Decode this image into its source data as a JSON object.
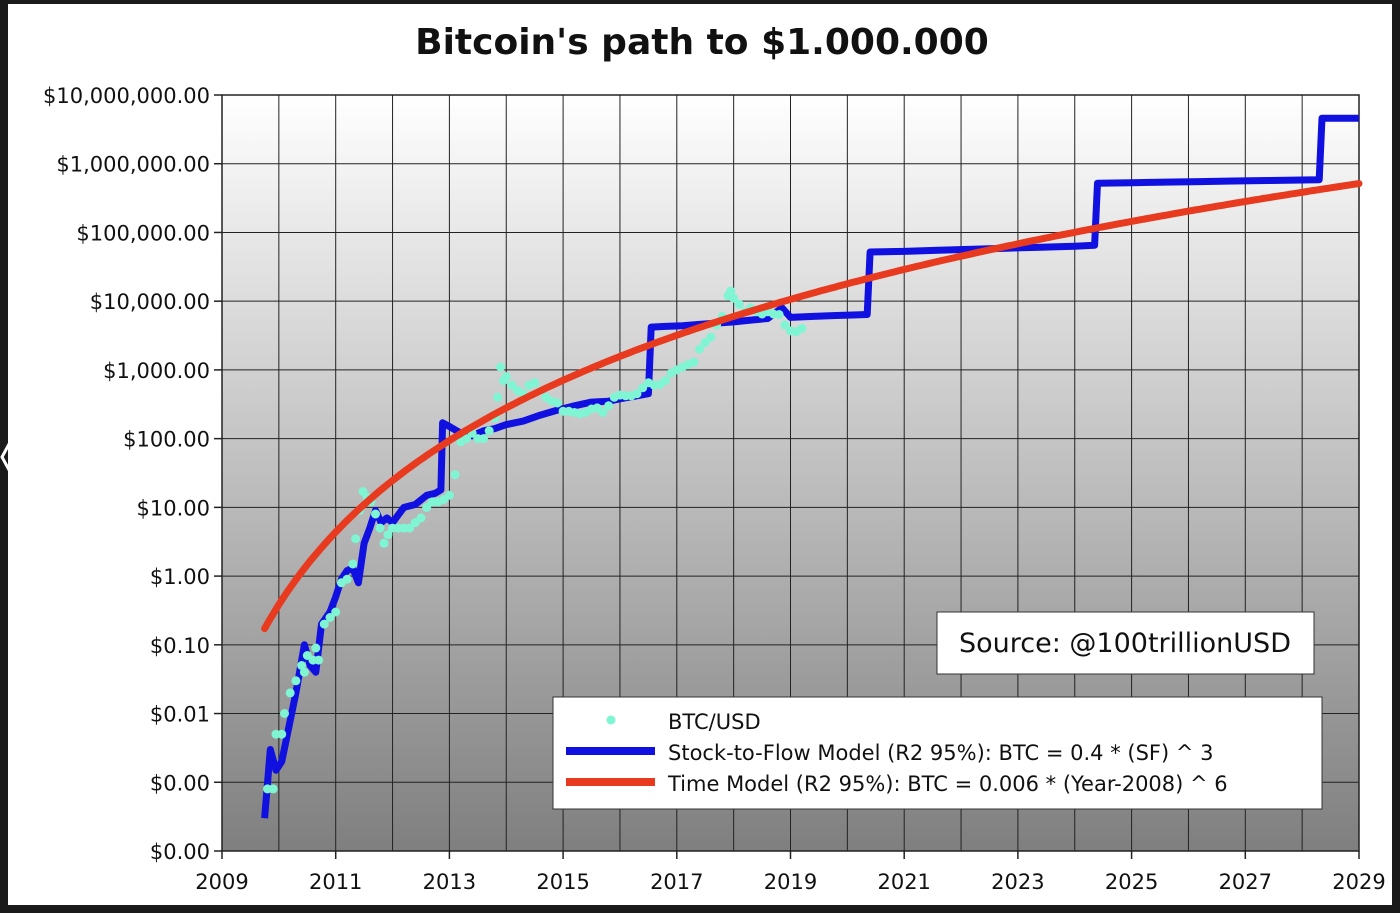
{
  "chart_data": {
    "type": "line",
    "title": "Bitcoin's path to $1.000.000",
    "xlabel": "",
    "ylabel": "",
    "y_scale": "log",
    "xlim": [
      2009,
      2029
    ],
    "ylim": [
      0.0001,
      10000000
    ],
    "grid": true,
    "y_tick_values": [
      0.0001,
      0.001,
      0.01,
      0.1,
      1,
      10,
      100,
      1000,
      10000,
      100000,
      1000000,
      10000000
    ],
    "y_tick_labels": [
      "$0.00",
      "$0.00",
      "$0.01",
      "$0.10",
      "$1.00",
      "$10.00",
      "$100.00",
      "$1,000.00",
      "$10,000.00",
      "$100,000.00",
      "$1,000,000.00",
      "$10,000,000.00"
    ],
    "x_tick_values": [
      2009,
      2011,
      2013,
      2015,
      2017,
      2019,
      2021,
      2023,
      2025,
      2027,
      2029
    ],
    "x_tick_labels": [
      "2009",
      "2011",
      "2013",
      "2015",
      "2017",
      "2019",
      "2021",
      "2023",
      "2025",
      "2027",
      "2029"
    ],
    "legend_position": "bottom-right",
    "annotation": "Source: @100trillionUSD",
    "series": [
      {
        "name": "BTC/USD",
        "kind": "scatter",
        "color": "#7ff5d3",
        "points": [
          [
            2009.8,
            0.0008
          ],
          [
            2009.9,
            0.0008
          ],
          [
            2009.95,
            0.005
          ],
          [
            2010.05,
            0.005
          ],
          [
            2010.1,
            0.01
          ],
          [
            2010.2,
            0.02
          ],
          [
            2010.3,
            0.03
          ],
          [
            2010.4,
            0.05
          ],
          [
            2010.45,
            0.04
          ],
          [
            2010.5,
            0.07
          ],
          [
            2010.6,
            0.06
          ],
          [
            2010.65,
            0.09
          ],
          [
            2010.7,
            0.06
          ],
          [
            2010.8,
            0.2
          ],
          [
            2010.9,
            0.25
          ],
          [
            2011.0,
            0.3
          ],
          [
            2011.1,
            0.8
          ],
          [
            2011.2,
            0.9
          ],
          [
            2011.3,
            1.5
          ],
          [
            2011.35,
            3.5
          ],
          [
            2011.42,
            9
          ],
          [
            2011.48,
            17
          ],
          [
            2011.55,
            14
          ],
          [
            2011.62,
            12
          ],
          [
            2011.7,
            8
          ],
          [
            2011.78,
            5
          ],
          [
            2011.85,
            3
          ],
          [
            2011.92,
            4
          ],
          [
            2012.0,
            5
          ],
          [
            2012.1,
            5
          ],
          [
            2012.2,
            5
          ],
          [
            2012.3,
            5
          ],
          [
            2012.4,
            6
          ],
          [
            2012.5,
            7
          ],
          [
            2012.6,
            10
          ],
          [
            2012.7,
            12
          ],
          [
            2012.8,
            12
          ],
          [
            2012.9,
            13
          ],
          [
            2013.0,
            15
          ],
          [
            2013.1,
            30
          ],
          [
            2013.2,
            90
          ],
          [
            2013.3,
            100
          ],
          [
            2013.4,
            120
          ],
          [
            2013.5,
            100
          ],
          [
            2013.6,
            100
          ],
          [
            2013.7,
            130
          ],
          [
            2013.8,
            200
          ],
          [
            2013.85,
            400
          ],
          [
            2013.9,
            1100
          ],
          [
            2013.95,
            700
          ],
          [
            2014.0,
            800
          ],
          [
            2014.1,
            600
          ],
          [
            2014.2,
            500
          ],
          [
            2014.3,
            450
          ],
          [
            2014.4,
            600
          ],
          [
            2014.5,
            650
          ],
          [
            2014.6,
            500
          ],
          [
            2014.7,
            400
          ],
          [
            2014.8,
            350
          ],
          [
            2014.9,
            330
          ],
          [
            2015.0,
            250
          ],
          [
            2015.1,
            250
          ],
          [
            2015.2,
            240
          ],
          [
            2015.3,
            230
          ],
          [
            2015.4,
            240
          ],
          [
            2015.5,
            270
          ],
          [
            2015.6,
            280
          ],
          [
            2015.7,
            240
          ],
          [
            2015.8,
            300
          ],
          [
            2015.9,
            400
          ],
          [
            2016.0,
            430
          ],
          [
            2016.1,
            420
          ],
          [
            2016.2,
            420
          ],
          [
            2016.3,
            450
          ],
          [
            2016.4,
            550
          ],
          [
            2016.5,
            650
          ],
          [
            2016.6,
            600
          ],
          [
            2016.7,
            610
          ],
          [
            2016.8,
            700
          ],
          [
            2016.9,
            900
          ],
          [
            2017.0,
            1000
          ],
          [
            2017.1,
            1100
          ],
          [
            2017.2,
            1200
          ],
          [
            2017.3,
            1300
          ],
          [
            2017.4,
            2000
          ],
          [
            2017.5,
            2500
          ],
          [
            2017.6,
            3000
          ],
          [
            2017.7,
            4500
          ],
          [
            2017.8,
            6000
          ],
          [
            2017.9,
            12000
          ],
          [
            2017.95,
            14000
          ],
          [
            2018.0,
            11000
          ],
          [
            2018.1,
            9000
          ],
          [
            2018.2,
            7000
          ],
          [
            2018.3,
            8000
          ],
          [
            2018.4,
            7000
          ],
          [
            2018.5,
            6500
          ],
          [
            2018.6,
            7000
          ],
          [
            2018.7,
            6500
          ],
          [
            2018.8,
            6400
          ],
          [
            2018.9,
            4500
          ],
          [
            2019.0,
            3700
          ],
          [
            2019.1,
            3600
          ],
          [
            2019.2,
            4000
          ]
        ]
      },
      {
        "name": "Stock-to-Flow Model (R2 95%): BTC = 0.4 * (SF) ^ 3",
        "kind": "line",
        "color": "#1010e0",
        "points": [
          [
            2009.75,
            0.0003
          ],
          [
            2009.85,
            0.003
          ],
          [
            2009.95,
            0.0015
          ],
          [
            2010.05,
            0.002
          ],
          [
            2010.15,
            0.005
          ],
          [
            2010.3,
            0.02
          ],
          [
            2010.45,
            0.1
          ],
          [
            2010.55,
            0.05
          ],
          [
            2010.65,
            0.04
          ],
          [
            2010.75,
            0.2
          ],
          [
            2010.9,
            0.3
          ],
          [
            2011.0,
            0.5
          ],
          [
            2011.1,
            0.9
          ],
          [
            2011.2,
            1.2
          ],
          [
            2011.3,
            1.3
          ],
          [
            2011.4,
            0.8
          ],
          [
            2011.5,
            3
          ],
          [
            2011.6,
            5
          ],
          [
            2011.7,
            9
          ],
          [
            2011.8,
            6
          ],
          [
            2011.9,
            7
          ],
          [
            2012.0,
            6
          ],
          [
            2012.2,
            10
          ],
          [
            2012.4,
            11
          ],
          [
            2012.6,
            15
          ],
          [
            2012.75,
            16
          ],
          [
            2012.85,
            18
          ],
          [
            2012.88,
            170
          ],
          [
            2013.0,
            150
          ],
          [
            2013.2,
            120
          ],
          [
            2013.4,
            110
          ],
          [
            2013.6,
            130
          ],
          [
            2013.8,
            140
          ],
          [
            2014.0,
            160
          ],
          [
            2014.3,
            180
          ],
          [
            2014.6,
            220
          ],
          [
            2014.9,
            260
          ],
          [
            2015.2,
            300
          ],
          [
            2015.5,
            340
          ],
          [
            2015.8,
            350
          ],
          [
            2016.0,
            380
          ],
          [
            2016.3,
            420
          ],
          [
            2016.5,
            450
          ],
          [
            2016.55,
            4200
          ],
          [
            2016.8,
            4300
          ],
          [
            2017.1,
            4400
          ],
          [
            2017.4,
            4600
          ],
          [
            2017.7,
            4800
          ],
          [
            2018.0,
            5000
          ],
          [
            2018.3,
            5300
          ],
          [
            2018.6,
            5600
          ],
          [
            2018.85,
            8000
          ],
          [
            2019.0,
            5800
          ],
          [
            2019.4,
            6000
          ],
          [
            2019.8,
            6200
          ],
          [
            2020.1,
            6300
          ],
          [
            2020.35,
            6400
          ],
          [
            2020.4,
            52000
          ],
          [
            2021.0,
            53000
          ],
          [
            2021.6,
            55000
          ],
          [
            2022.2,
            57000
          ],
          [
            2022.8,
            59000
          ],
          [
            2023.4,
            61000
          ],
          [
            2024.0,
            63000
          ],
          [
            2024.35,
            65000
          ],
          [
            2024.4,
            520000
          ],
          [
            2025.0,
            530000
          ],
          [
            2025.6,
            540000
          ],
          [
            2026.2,
            550000
          ],
          [
            2026.8,
            560000
          ],
          [
            2027.4,
            570000
          ],
          [
            2028.0,
            580000
          ],
          [
            2028.3,
            585000
          ],
          [
            2028.35,
            4600000
          ],
          [
            2029.0,
            4600000
          ]
        ]
      },
      {
        "name": "Time Model (R2 95%): BTC = 0.006 * (Year-2008) ^ 6",
        "kind": "line",
        "color": "#e83a1e",
        "function": {
          "coef": 0.006,
          "base_year": 2008,
          "power": 6
        },
        "x_range": [
          2009.75,
          2029
        ]
      }
    ]
  }
}
